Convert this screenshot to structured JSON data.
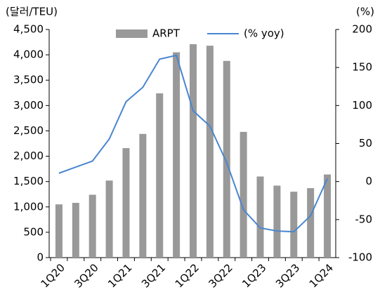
{
  "chart_data": {
    "type": "bar",
    "y_label": "(달러/TEU)",
    "y2_label": "(%)",
    "categories": [
      "1Q20",
      null,
      "3Q20",
      null,
      "1Q21",
      null,
      "3Q21",
      null,
      "1Q22",
      null,
      "3Q22",
      null,
      "1Q23",
      null,
      "3Q23",
      null,
      "1Q24"
    ],
    "series": [
      {
        "name": "ARPT",
        "type": "bar",
        "color": "#999999",
        "values": [
          1050,
          1080,
          1240,
          1520,
          2160,
          2440,
          3240,
          4050,
          4210,
          4180,
          3880,
          2480,
          1600,
          1420,
          1300,
          1370,
          1640
        ]
      },
      {
        "name": "(% yoy)",
        "type": "line",
        "axis": "y2",
        "color": "#4a86d0",
        "values": [
          11,
          19,
          27,
          56,
          105,
          124,
          161,
          166,
          93,
          73,
          25,
          -37,
          -61,
          -65,
          -66,
          -45,
          4
        ]
      }
    ],
    "ylim": [
      0,
      4500
    ],
    "yticks": [
      0,
      500,
      {
        "value": 1000,
        "label": "1,000"
      },
      {
        "value": 1500,
        "label": "1,500"
      },
      {
        "value": 2000,
        "label": "2,000"
      },
      {
        "value": 2500,
        "label": "2,500"
      },
      {
        "value": 3000,
        "label": "3,000"
      },
      {
        "value": 3500,
        "label": "3,500"
      },
      {
        "value": 4000,
        "label": "4,000"
      },
      {
        "value": 4500,
        "label": "4,500"
      }
    ],
    "y2lim": [
      -100,
      200
    ],
    "y2ticks": [
      -100,
      -50,
      0,
      50,
      100,
      150,
      200
    ]
  }
}
